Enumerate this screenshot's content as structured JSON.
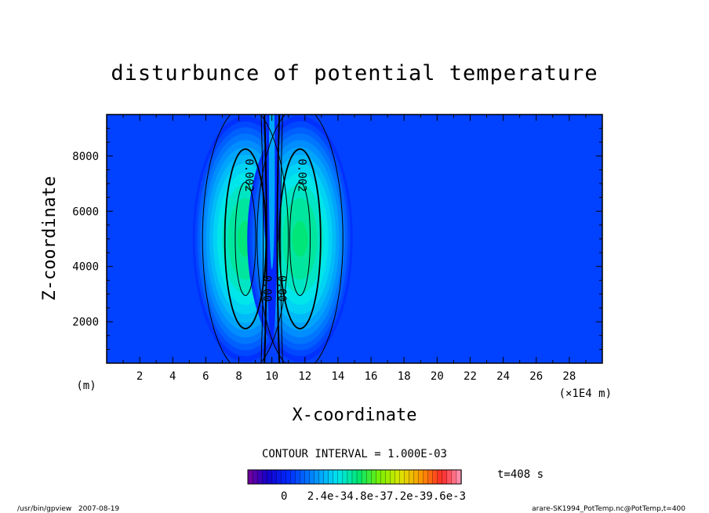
{
  "chart_data": {
    "type": "heatmap",
    "title": "disturbunce of potential temperature",
    "xlabel": "X-coordinate",
    "ylabel": "Z-coordinate",
    "x_unit": "(m)",
    "x_scale_label": "(×1E4 m)",
    "x_ticks": [
      2,
      4,
      6,
      8,
      10,
      12,
      14,
      16,
      18,
      20,
      22,
      24,
      26,
      28
    ],
    "y_ticks": [
      2000,
      4000,
      6000,
      8000
    ],
    "xlim": [
      0,
      30
    ],
    "ylim": [
      500,
      9500
    ],
    "field": {
      "background": 0,
      "max": 0.0043,
      "lobes": [
        {
          "x_center": 8.4,
          "z_center": 5000,
          "peak": 0.0043
        },
        {
          "x_center": 11.7,
          "z_center": 5000,
          "peak": 0.0043
        },
        {
          "x_center": 10.0,
          "z_center": 6500,
          "peak": 0.0016
        }
      ],
      "cold_core": {
        "x_center": 10.0,
        "z_center": 5000,
        "value": -0.002
      }
    },
    "contour_labels": [
      {
        "text": "0.002",
        "x": 8.4,
        "z": 7300
      },
      {
        "text": "0.002",
        "x": 11.6,
        "z": 7300
      },
      {
        "text": "0.00",
        "x": 9.5,
        "z": 3200
      },
      {
        "text": "0.00",
        "x": 10.4,
        "z": 3200
      }
    ],
    "contour_interval_text": "CONTOUR INTERVAL = 1.000E-03",
    "colorbar_labels_text": "0   2.4e-34.8e-37.2e-39.6e-3",
    "time_label": "t=408 s",
    "footer_left": "/usr/bin/gpview   2007-08-19",
    "footer_right": "arare-SK1994_PotTemp.nc@PotTemp,t=400"
  },
  "colors": {
    "background_field": "#0042ff",
    "max_field": "#60ff00",
    "contour": "#000000"
  }
}
